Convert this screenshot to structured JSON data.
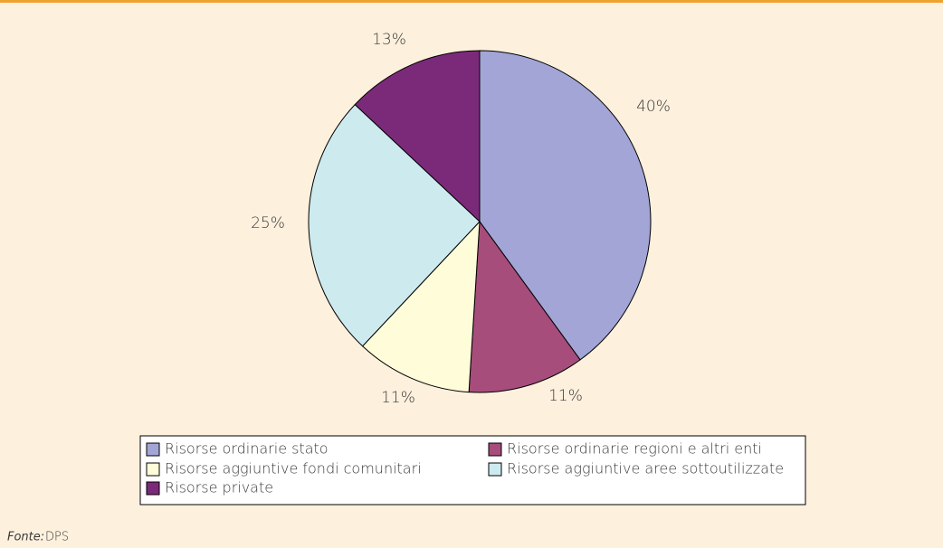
{
  "chart_data": {
    "type": "pie",
    "categories": [
      "Risorse ordinarie stato",
      "Risorse ordinarie regioni e altri enti",
      "Risorse aggiuntive fondi comunitari",
      "Risorse aggiuntive aree sottoutilizzate",
      "Risorse private"
    ],
    "values": [
      40,
      11,
      11,
      25,
      13
    ],
    "value_labels": [
      "40%",
      "11%",
      "11%",
      "25%",
      "13%"
    ],
    "colors": [
      "#a2a5d5",
      "#a64d7b",
      "#fefcd9",
      "#cdeaef",
      "#7b2a79"
    ],
    "source": {
      "label": "Fonte:",
      "text": "DPS"
    }
  }
}
